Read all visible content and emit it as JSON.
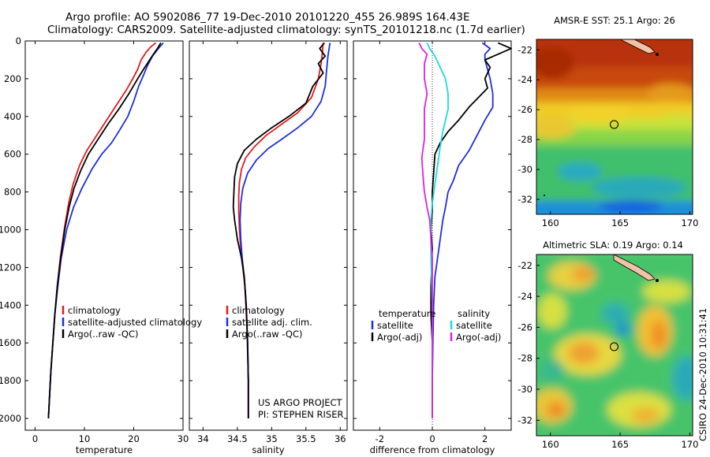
{
  "title_line1": "Argo profile: AO 5902086_77 19-Dec-2010 20101220_455 26.989S 164.43E",
  "title_line2": "Climatology: CARS2009. Satellite-adjusted climatology: synTS_20101218.nc (1.7d earlier)",
  "side_caption": "CSIRO 24-Dec-2010 10:31:41",
  "project_credit": [
    "US ARGO PROJECT",
    "PI: STEPHEN RISER"
  ],
  "colors": {
    "climatology": "#e41a1c",
    "satellite": "#1f2fd6",
    "argo": "#000000",
    "salinity_diff": "#22d8d8",
    "argo_adj_salinity": "#e020e0"
  },
  "chart_data": [
    {
      "id": "temperature",
      "type": "line",
      "xlabel": "temperature",
      "xlim": [
        -2,
        30
      ],
      "xticks": [
        0,
        10,
        20,
        30
      ],
      "ylim": [
        2050,
        0
      ],
      "yticks": [
        0,
        200,
        400,
        600,
        800,
        1000,
        1200,
        1400,
        1600,
        1800,
        2000
      ],
      "legend": [
        "climatology",
        "satellite-adjusted climatology",
        "Argo(..raw -QC)"
      ],
      "series": [
        {
          "name": "climatology",
          "color": "#e41a1c",
          "points": [
            [
              24.5,
              10
            ],
            [
              23.5,
              30
            ],
            [
              22.5,
              60
            ],
            [
              21.5,
              100
            ],
            [
              20.8,
              150
            ],
            [
              19.8,
              200
            ],
            [
              18.5,
              260
            ],
            [
              16.5,
              340
            ],
            [
              14.5,
              420
            ],
            [
              12.5,
              500
            ],
            [
              10.5,
              580
            ],
            [
              9.0,
              660
            ],
            [
              7.7,
              760
            ],
            [
              6.8,
              860
            ],
            [
              5.9,
              1000
            ],
            [
              5.1,
              1150
            ],
            [
              4.5,
              1300
            ],
            [
              4.0,
              1450
            ],
            [
              3.6,
              1600
            ],
            [
              3.2,
              1750
            ],
            [
              2.9,
              1900
            ],
            [
              2.7,
              2000
            ]
          ]
        },
        {
          "name": "satellite-adjusted climatology",
          "color": "#1f2fd6",
          "points": [
            [
              26.0,
              10
            ],
            [
              25.0,
              40
            ],
            [
              23.8,
              80
            ],
            [
              22.8,
              130
            ],
            [
              22.0,
              180
            ],
            [
              21.0,
              240
            ],
            [
              20.0,
              320
            ],
            [
              18.8,
              400
            ],
            [
              17.2,
              470
            ],
            [
              15.5,
              540
            ],
            [
              13.5,
              600
            ],
            [
              11.5,
              680
            ],
            [
              9.5,
              780
            ],
            [
              7.8,
              880
            ],
            [
              6.4,
              1000
            ],
            [
              5.3,
              1150
            ],
            [
              4.6,
              1300
            ],
            [
              4.0,
              1450
            ],
            [
              3.6,
              1600
            ],
            [
              3.2,
              1750
            ],
            [
              2.9,
              1900
            ],
            [
              2.7,
              2000
            ]
          ]
        },
        {
          "name": "Argo(..raw -QC)",
          "color": "#000000",
          "points": [
            [
              25.5,
              10
            ],
            [
              24.8,
              40
            ],
            [
              24.0,
              70
            ],
            [
              23.0,
              110
            ],
            [
              22.0,
              150
            ],
            [
              20.8,
              200
            ],
            [
              19.0,
              280
            ],
            [
              17.0,
              360
            ],
            [
              14.8,
              440
            ],
            [
              12.8,
              520
            ],
            [
              10.8,
              600
            ],
            [
              9.2,
              690
            ],
            [
              7.9,
              780
            ],
            [
              6.9,
              880
            ],
            [
              6.0,
              1000
            ],
            [
              5.2,
              1150
            ],
            [
              4.5,
              1300
            ],
            [
              4.0,
              1450
            ],
            [
              3.6,
              1600
            ],
            [
              3.2,
              1750
            ],
            [
              2.9,
              1900
            ],
            [
              2.7,
              2000
            ]
          ]
        }
      ]
    },
    {
      "id": "salinity",
      "type": "line",
      "xlabel": "salinity",
      "xlim": [
        33.8,
        36.1
      ],
      "xticks": [
        34,
        34.5,
        35,
        35.5,
        36
      ],
      "ylim": [
        2050,
        0
      ],
      "yticks": [
        0,
        200,
        400,
        600,
        800,
        1000,
        1200,
        1400,
        1600,
        1800,
        2000
      ],
      "legend": [
        "climatology",
        "satellite adj. clim.",
        "Argo(..raw -QC)"
      ],
      "series": [
        {
          "name": "climatology",
          "color": "#e41a1c",
          "points": [
            [
              35.75,
              10
            ],
            [
              35.74,
              60
            ],
            [
              35.72,
              120
            ],
            [
              35.68,
              200
            ],
            [
              35.58,
              300
            ],
            [
              35.38,
              380
            ],
            [
              35.15,
              440
            ],
            [
              34.92,
              500
            ],
            [
              34.75,
              560
            ],
            [
              34.62,
              620
            ],
            [
              34.56,
              680
            ],
            [
              34.53,
              750
            ],
            [
              34.52,
              820
            ],
            [
              34.52,
              900
            ],
            [
              34.53,
              1000
            ],
            [
              34.55,
              1100
            ],
            [
              34.58,
              1200
            ],
            [
              34.61,
              1300
            ],
            [
              34.63,
              1450
            ],
            [
              34.65,
              1600
            ],
            [
              34.66,
              1800
            ],
            [
              34.66,
              2000
            ]
          ]
        },
        {
          "name": "satellite adj. clim.",
          "color": "#1f2fd6",
          "points": [
            [
              35.85,
              10
            ],
            [
              35.82,
              80
            ],
            [
              35.8,
              160
            ],
            [
              35.78,
              240
            ],
            [
              35.72,
              320
            ],
            [
              35.58,
              400
            ],
            [
              35.38,
              460
            ],
            [
              35.15,
              520
            ],
            [
              34.95,
              570
            ],
            [
              34.78,
              630
            ],
            [
              34.65,
              700
            ],
            [
              34.58,
              780
            ],
            [
              34.55,
              860
            ],
            [
              34.54,
              950
            ],
            [
              34.55,
              1050
            ],
            [
              34.57,
              1150
            ],
            [
              34.6,
              1250
            ],
            [
              34.62,
              1350
            ],
            [
              34.64,
              1500
            ],
            [
              34.65,
              1650
            ],
            [
              34.66,
              1800
            ],
            [
              34.66,
              2000
            ]
          ]
        },
        {
          "name": "Argo(..raw -QC)",
          "color": "#000000",
          "points": [
            [
              35.77,
              10
            ],
            [
              35.7,
              40
            ],
            [
              35.78,
              80
            ],
            [
              35.68,
              120
            ],
            [
              35.75,
              170
            ],
            [
              35.6,
              240
            ],
            [
              35.5,
              330
            ],
            [
              35.25,
              400
            ],
            [
              35.0,
              460
            ],
            [
              34.78,
              520
            ],
            [
              34.6,
              580
            ],
            [
              34.5,
              650
            ],
            [
              34.46,
              720
            ],
            [
              34.45,
              800
            ],
            [
              34.44,
              880
            ],
            [
              34.46,
              950
            ],
            [
              34.5,
              1050
            ],
            [
              34.56,
              1150
            ],
            [
              34.6,
              1250
            ],
            [
              34.63,
              1400
            ],
            [
              34.65,
              1600
            ],
            [
              34.66,
              1800
            ],
            [
              34.66,
              2000
            ]
          ]
        }
      ]
    },
    {
      "id": "difference",
      "type": "line",
      "xlabel": "difference from climatology",
      "xlim": [
        -3,
        3
      ],
      "xticks": [
        -2,
        0,
        2
      ],
      "ylim": [
        2050,
        0
      ],
      "yticks": [
        0,
        200,
        400,
        600,
        800,
        1000,
        1200,
        1400,
        1600,
        1800,
        2000
      ],
      "legend_groups": [
        {
          "header": "temperature",
          "items": [
            "satellite",
            "Argo(-adj)"
          ]
        },
        {
          "header": "salinity",
          "items": [
            "satellite",
            "Argo(-adj)"
          ]
        }
      ],
      "series": [
        {
          "name": "temperature satellite",
          "color": "#1f2fd6",
          "points": [
            [
              1.9,
              10
            ],
            [
              2.2,
              40
            ],
            [
              2.0,
              70
            ],
            [
              2.0,
              100
            ],
            [
              2.1,
              150
            ],
            [
              2.2,
              200
            ],
            [
              2.3,
              280
            ],
            [
              2.3,
              350
            ],
            [
              2.0,
              420
            ],
            [
              1.7,
              500
            ],
            [
              1.4,
              580
            ],
            [
              1.0,
              660
            ],
            [
              0.8,
              740
            ],
            [
              0.6,
              800
            ],
            [
              0.5,
              880
            ],
            [
              0.4,
              950
            ],
            [
              0.3,
              1050
            ],
            [
              0.2,
              1150
            ],
            [
              0.1,
              1250
            ],
            [
              0.05,
              1400
            ],
            [
              0.02,
              1600
            ],
            [
              0.0,
              1800
            ],
            [
              0.0,
              2000
            ]
          ]
        },
        {
          "name": "temperature Argo(-adj)",
          "color": "#000000",
          "points": [
            [
              2.5,
              10
            ],
            [
              3.0,
              40
            ],
            [
              2.5,
              70
            ],
            [
              2.0,
              100
            ],
            [
              2.2,
              140
            ],
            [
              2.0,
              200
            ],
            [
              2.1,
              250
            ],
            [
              1.4,
              350
            ],
            [
              1.0,
              420
            ],
            [
              0.6,
              480
            ],
            [
              0.3,
              540
            ],
            [
              0.1,
              600
            ],
            [
              0.05,
              700
            ],
            [
              0.0,
              800
            ],
            [
              0.0,
              900
            ],
            [
              -0.05,
              1000
            ],
            [
              0.0,
              1100
            ],
            [
              -0.05,
              1300
            ],
            [
              -0.05,
              1450
            ],
            [
              0.0,
              1600
            ],
            [
              0.0,
              1800
            ],
            [
              0.0,
              2000
            ]
          ]
        },
        {
          "name": "salinity satellite",
          "color": "#22d8d8",
          "points": [
            [
              -0.2,
              10
            ],
            [
              -0.1,
              40
            ],
            [
              0.1,
              80
            ],
            [
              0.3,
              140
            ],
            [
              0.5,
              200
            ],
            [
              0.6,
              280
            ],
            [
              0.6,
              360
            ],
            [
              0.5,
              420
            ],
            [
              0.4,
              480
            ],
            [
              0.3,
              560
            ],
            [
              0.2,
              660
            ],
            [
              0.1,
              760
            ],
            [
              0.0,
              860
            ],
            [
              -0.05,
              950
            ],
            [
              -0.05,
              1050
            ],
            [
              -0.05,
              1150
            ],
            [
              -0.03,
              1250
            ],
            [
              0.0,
              1400
            ],
            [
              0.0,
              1600
            ],
            [
              0.0,
              1800
            ],
            [
              0.0,
              2000
            ]
          ]
        },
        {
          "name": "salinity Argo(-adj)",
          "color": "#e020e0",
          "points": [
            [
              -0.5,
              10
            ],
            [
              -0.4,
              40
            ],
            [
              -0.2,
              70
            ],
            [
              -0.3,
              120
            ],
            [
              -0.3,
              200
            ],
            [
              -0.2,
              280
            ],
            [
              -0.3,
              360
            ],
            [
              -0.3,
              440
            ],
            [
              -0.3,
              520
            ],
            [
              -0.4,
              620
            ],
            [
              -0.35,
              720
            ],
            [
              -0.3,
              800
            ],
            [
              -0.2,
              880
            ],
            [
              -0.1,
              950
            ],
            [
              -0.05,
              1050
            ],
            [
              0.0,
              1150
            ],
            [
              0.0,
              1250
            ],
            [
              0.0,
              1400
            ],
            [
              0.0,
              1600
            ],
            [
              0.0,
              1800
            ],
            [
              0.0,
              2000
            ]
          ]
        }
      ]
    },
    {
      "id": "sst_map",
      "type": "heatmap",
      "title": "AMSR-E SST: 25.1  Argo: 26",
      "xlim": [
        159,
        170.2
      ],
      "xticks": [
        160,
        165,
        170
      ],
      "ylim": [
        -33,
        -21.3
      ],
      "yticks": [
        -22,
        -24,
        -26,
        -28,
        -30,
        -32
      ],
      "marker": {
        "lon": 164.43,
        "lat": -26.989
      }
    },
    {
      "id": "sla_map",
      "type": "heatmap",
      "title": "Altimetric SLA: 0.19  Argo: 0.14",
      "xlim": [
        159,
        170.2
      ],
      "xticks": [
        160,
        165,
        170
      ],
      "ylim": [
        -33,
        -21.3
      ],
      "yticks": [
        -22,
        -24,
        -26,
        -28,
        -30,
        -32
      ],
      "marker": {
        "lon": 164.43,
        "lat": -26.989
      }
    }
  ]
}
